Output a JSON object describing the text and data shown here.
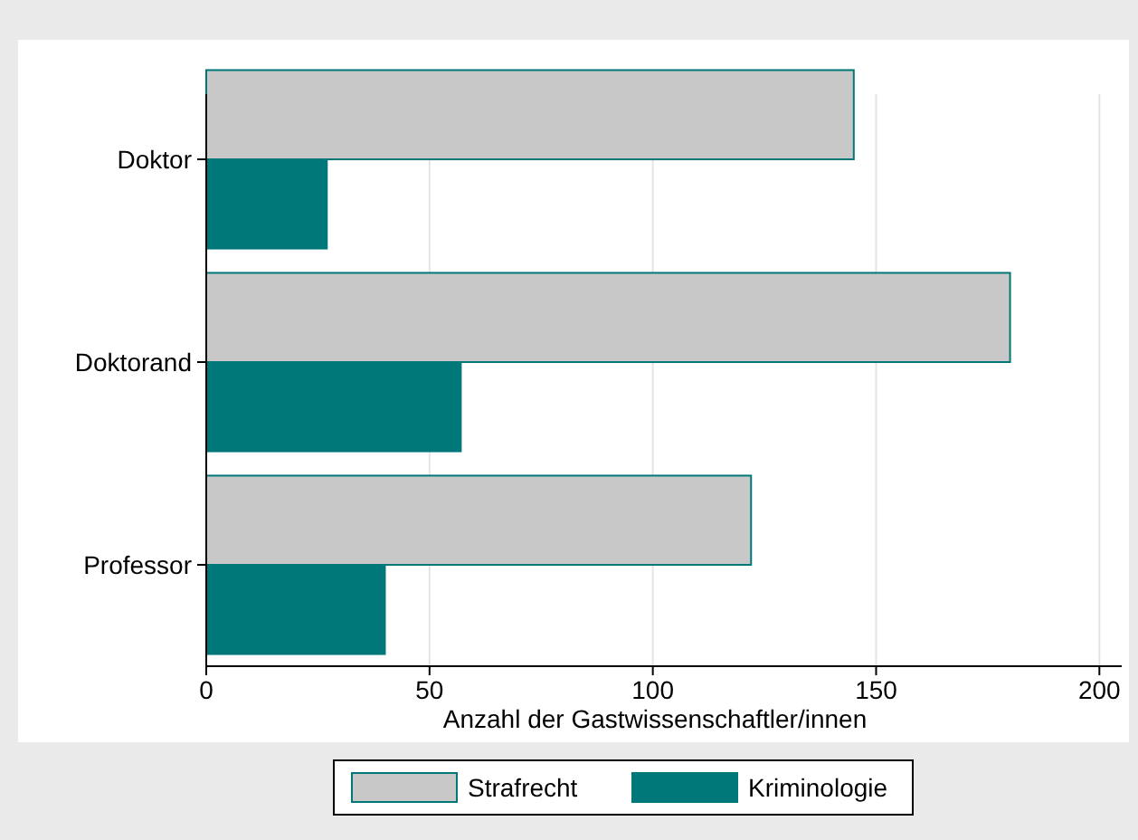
{
  "chart_data": {
    "type": "bar",
    "orientation": "horizontal",
    "categories": [
      "Doktor",
      "Doktorand",
      "Professor"
    ],
    "series": [
      {
        "name": "Strafrecht",
        "color": "#c8c8c8",
        "values": [
          145,
          180,
          122
        ]
      },
      {
        "name": "Kriminologie",
        "color": "#00787a",
        "values": [
          27,
          57,
          40
        ]
      }
    ],
    "xlabel": "Anzahl der Gastwissenschaftler/innen",
    "xlim": [
      0,
      205
    ],
    "xticks": [
      0,
      50,
      100,
      150,
      200
    ],
    "grid": "x",
    "legend": "bottom"
  }
}
